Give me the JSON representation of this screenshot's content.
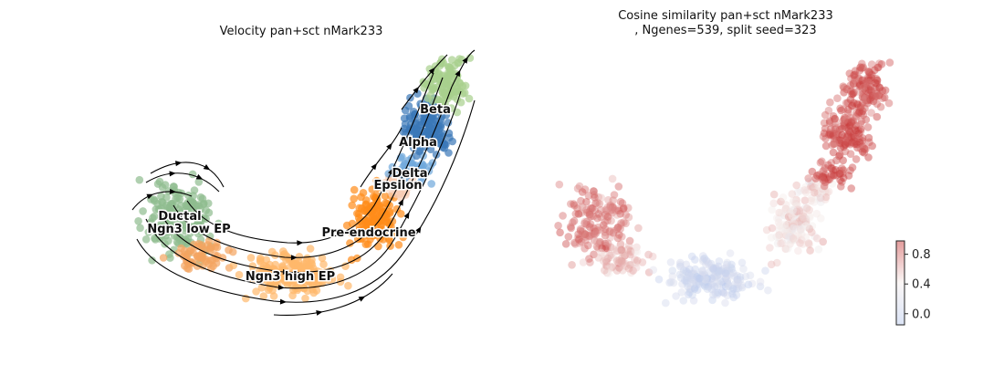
{
  "chart_data": [
    {
      "type": "scatter",
      "title": "Velocity pan+sct nMark233",
      "xlabel": "",
      "ylabel": "",
      "overlay": "velocity streamlines",
      "legend": "on-data",
      "axes_visible": false,
      "clusters": [
        {
          "name": "Ductal",
          "color": "#8fbc8f"
        },
        {
          "name": "Ngn3 low EP",
          "color": "#f4a460"
        },
        {
          "name": "Ngn3 high EP",
          "color": "#ffb86b"
        },
        {
          "name": "Pre-endocrine",
          "color": "#ff8c1a"
        },
        {
          "name": "Beta",
          "color": "#a8d08d"
        },
        {
          "name": "Alpha",
          "color": "#3a78b8"
        },
        {
          "name": "Delta",
          "color": "#6fa8dc"
        },
        {
          "name": "Epsilon",
          "color": "#f6ccb3"
        }
      ],
      "labels": [
        "Ductal",
        "Ngn3 low EP",
        "Ngn3 high EP",
        "Pre-endocrine",
        "Beta",
        "Alpha",
        "Delta",
        "Epsilon"
      ]
    },
    {
      "type": "scatter",
      "title_lines": [
        "Cosine similarity pan+sct nMark233",
        ", Ngenes=539, split seed=323"
      ],
      "xlabel": "",
      "ylabel": "",
      "axes_visible": false,
      "colormap": "coolwarm",
      "colorbar": {
        "ticks": [
          "0.8",
          "0.4",
          "0.0"
        ],
        "tick_values": [
          0.8,
          0.4,
          0.0
        ],
        "range": [
          -0.15,
          0.98
        ]
      },
      "color_low": "#b8c9ee",
      "color_high": "#c83a3a",
      "region_values": {
        "ductal": 0.78,
        "ngn3_low": 0.55,
        "ngn3_high": 0.05,
        "pre_endocrine": 0.45,
        "beta_alpha": 0.9
      }
    }
  ]
}
